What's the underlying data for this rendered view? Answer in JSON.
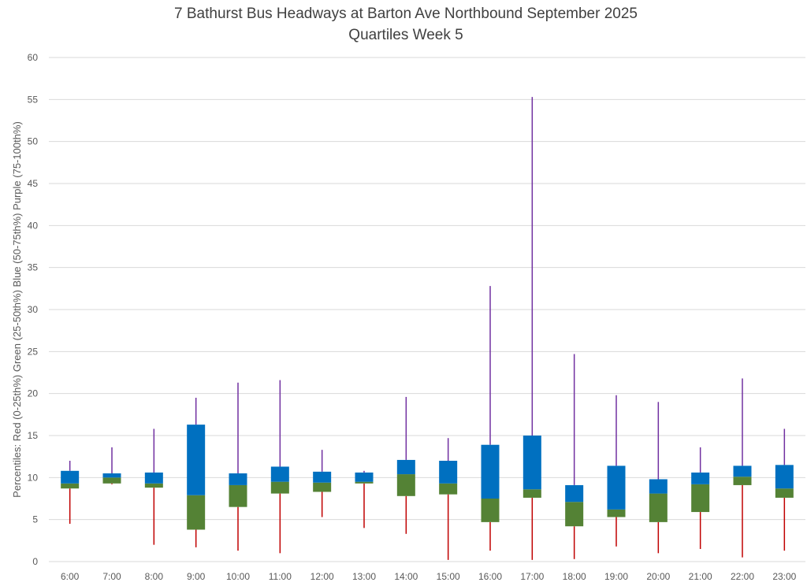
{
  "chart_data": {
    "type": "box",
    "title": "7 Bathurst Bus Headways at Barton Ave Northbound September 2025",
    "subtitle": "Quartiles Week 5",
    "ylabel": "Percentiles:  Red (0-25th%)  Green (25-50th%)  Blue (50-75th%)  Purple (75-100th%)",
    "xlabel": "",
    "ylim": [
      0,
      60
    ],
    "yticks": [
      0,
      5,
      10,
      15,
      20,
      25,
      30,
      35,
      40,
      45,
      50,
      55,
      60
    ],
    "grid": true,
    "legend": "none",
    "colors": {
      "q1_whisker": "#c00000",
      "q2_box": "#548235",
      "q3_box": "#0070c0",
      "q4_whisker": "#7030a0",
      "grid": "#d9d9d9",
      "text": "#595959"
    },
    "categories": [
      "6:00",
      "7:00",
      "8:00",
      "9:00",
      "10:00",
      "11:00",
      "12:00",
      "13:00",
      "14:00",
      "15:00",
      "16:00",
      "17:00",
      "18:00",
      "19:00",
      "20:00",
      "21:00",
      "22:00",
      "23:00"
    ],
    "min": [
      4.5,
      9.2,
      2.0,
      1.7,
      1.3,
      1.0,
      5.3,
      4.0,
      3.3,
      0.2,
      1.3,
      0.2,
      0.3,
      1.8,
      1.0,
      1.5,
      0.5,
      1.3
    ],
    "q1": [
      8.7,
      9.3,
      8.8,
      3.8,
      6.5,
      8.1,
      8.3,
      9.3,
      7.8,
      8.0,
      4.7,
      7.6,
      4.2,
      5.3,
      4.7,
      5.9,
      9.1,
      7.6
    ],
    "median": [
      9.3,
      10.0,
      9.3,
      7.9,
      9.1,
      9.5,
      9.4,
      9.5,
      10.4,
      9.3,
      7.5,
      8.6,
      7.1,
      6.2,
      8.1,
      9.2,
      10.1,
      8.7
    ],
    "q3": [
      10.8,
      10.5,
      10.6,
      16.3,
      10.5,
      11.3,
      10.7,
      10.6,
      12.1,
      12.0,
      13.9,
      15.0,
      9.1,
      11.4,
      9.8,
      10.6,
      11.4,
      11.5
    ],
    "max": [
      12.0,
      13.6,
      15.8,
      19.5,
      21.3,
      21.6,
      13.3,
      10.8,
      19.6,
      14.7,
      32.8,
      55.3,
      24.7,
      19.8,
      19.0,
      13.6,
      21.8,
      15.8
    ]
  }
}
